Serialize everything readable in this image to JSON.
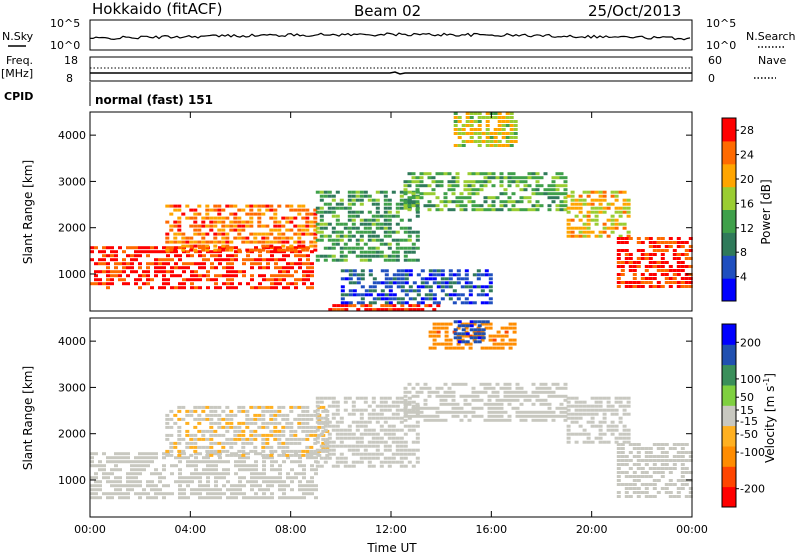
{
  "header": {
    "station": "Hokkaido (fitACF)",
    "beam": "Beam 02",
    "date": "25/Oct/2013"
  },
  "noise_panel": {
    "left_label": "N.Sky",
    "left_ticks": [
      "10^5",
      "10^0"
    ],
    "right_ticks": [
      "10^5",
      "10^0"
    ],
    "right_label": "N.Search"
  },
  "freq_panel": {
    "left_label_1": "Freq.",
    "left_label_2": "[MHz]",
    "left_ticks": [
      "18",
      "8"
    ],
    "right_ticks": [
      "60",
      "0"
    ],
    "right_label": "Nave"
  },
  "cpid_panel": {
    "label": "CPID",
    "text": "normal (fast) 151"
  },
  "chart_data": [
    {
      "type": "heatmap",
      "name": "power",
      "ylabel": "Slant Range [km]",
      "y_ticks": [
        "4000",
        "3000",
        "2000",
        "1000"
      ],
      "y_tick_values": [
        4000,
        3000,
        2000,
        1000
      ],
      "ylim": [
        200,
        4500
      ],
      "xlim_hours": [
        0,
        24
      ],
      "colorbar": {
        "label": "Power [dB]",
        "tick_labels": [
          "28",
          "24",
          "20",
          "16",
          "12",
          "8",
          "4"
        ],
        "tick_values": [
          28,
          24,
          20,
          16,
          12,
          8,
          4
        ],
        "range": [
          0,
          30
        ],
        "colors": [
          "#0000ff",
          "#1f4fbf",
          "#2f7a5a",
          "#3fa04a",
          "#9acd32",
          "#ffa500",
          "#ff6a00",
          "#ff0000"
        ]
      },
      "regions": [
        {
          "t0": 0.0,
          "t1": 8.8,
          "r0": 700,
          "r1": 1600,
          "v": 27
        },
        {
          "t0": 3.0,
          "t1": 9.0,
          "r0": 1500,
          "r1": 2500,
          "v": 24
        },
        {
          "t0": 9.0,
          "t1": 13.0,
          "r0": 1300,
          "r1": 2800,
          "v": 12
        },
        {
          "t0": 12.5,
          "t1": 19.0,
          "r0": 2400,
          "r1": 3200,
          "v": 14
        },
        {
          "t0": 14.5,
          "t1": 17.0,
          "r0": 3800,
          "r1": 4500,
          "v": 18
        },
        {
          "t0": 19.0,
          "t1": 21.5,
          "r0": 1800,
          "r1": 2800,
          "v": 20
        },
        {
          "t0": 21.0,
          "t1": 24.0,
          "r0": 700,
          "r1": 1800,
          "v": 27
        },
        {
          "t0": 9.5,
          "t1": 14.0,
          "r0": 250,
          "r1": 350,
          "v": 28
        },
        {
          "t0": 10.0,
          "t1": 16.0,
          "r0": 400,
          "r1": 1100,
          "v": 6
        }
      ]
    },
    {
      "type": "heatmap",
      "name": "velocity",
      "ylabel": "Slant Range [km]",
      "y_ticks": [
        "4000",
        "3000",
        "2000",
        "1000"
      ],
      "y_tick_values": [
        4000,
        3000,
        2000,
        1000
      ],
      "ylim": [
        200,
        4500
      ],
      "xlim_hours": [
        0,
        24
      ],
      "x_ticks": [
        "00:00",
        "04:00",
        "08:00",
        "12:00",
        "16:00",
        "20:00",
        "00:00"
      ],
      "x_tick_hours": [
        0,
        4,
        8,
        12,
        16,
        20,
        24
      ],
      "xlabel": "Time UT",
      "colorbar": {
        "label": "Velocity [m s",
        "label_sup": "-1",
        "label_end": "]",
        "tick_labels": [
          "200",
          "100",
          "50",
          "15",
          "-15",
          "-50",
          "-100",
          "-200"
        ],
        "tick_values": [
          200,
          100,
          50,
          15,
          -15,
          -50,
          -100,
          -200
        ],
        "range": [
          -250,
          250
        ],
        "colors": [
          "#ff0000",
          "#ff4500",
          "#ff8c00",
          "#ffb020",
          "#c8c8c0",
          "#7fd040",
          "#3a8f5a",
          "#2050b0",
          "#0000ff"
        ]
      },
      "regions": [
        {
          "t0": 0.0,
          "t1": 9.0,
          "r0": 600,
          "r1": 1600,
          "v": 0
        },
        {
          "t0": 3.0,
          "t1": 9.5,
          "r0": 1500,
          "r1": 2600,
          "v": -20
        },
        {
          "t0": 9.0,
          "t1": 13.0,
          "r0": 1300,
          "r1": 2800,
          "v": 0
        },
        {
          "t0": 12.5,
          "t1": 19.0,
          "r0": 2300,
          "r1": 3100,
          "v": 0
        },
        {
          "t0": 13.5,
          "t1": 17.0,
          "r0": 3800,
          "r1": 4400,
          "v": -120
        },
        {
          "t0": 14.5,
          "t1": 15.8,
          "r0": 4000,
          "r1": 4450,
          "v": 180
        },
        {
          "t0": 19.0,
          "t1": 21.5,
          "r0": 1800,
          "r1": 2800,
          "v": 0
        },
        {
          "t0": 21.0,
          "t1": 24.0,
          "r0": 600,
          "r1": 1800,
          "v": 0
        }
      ]
    }
  ]
}
